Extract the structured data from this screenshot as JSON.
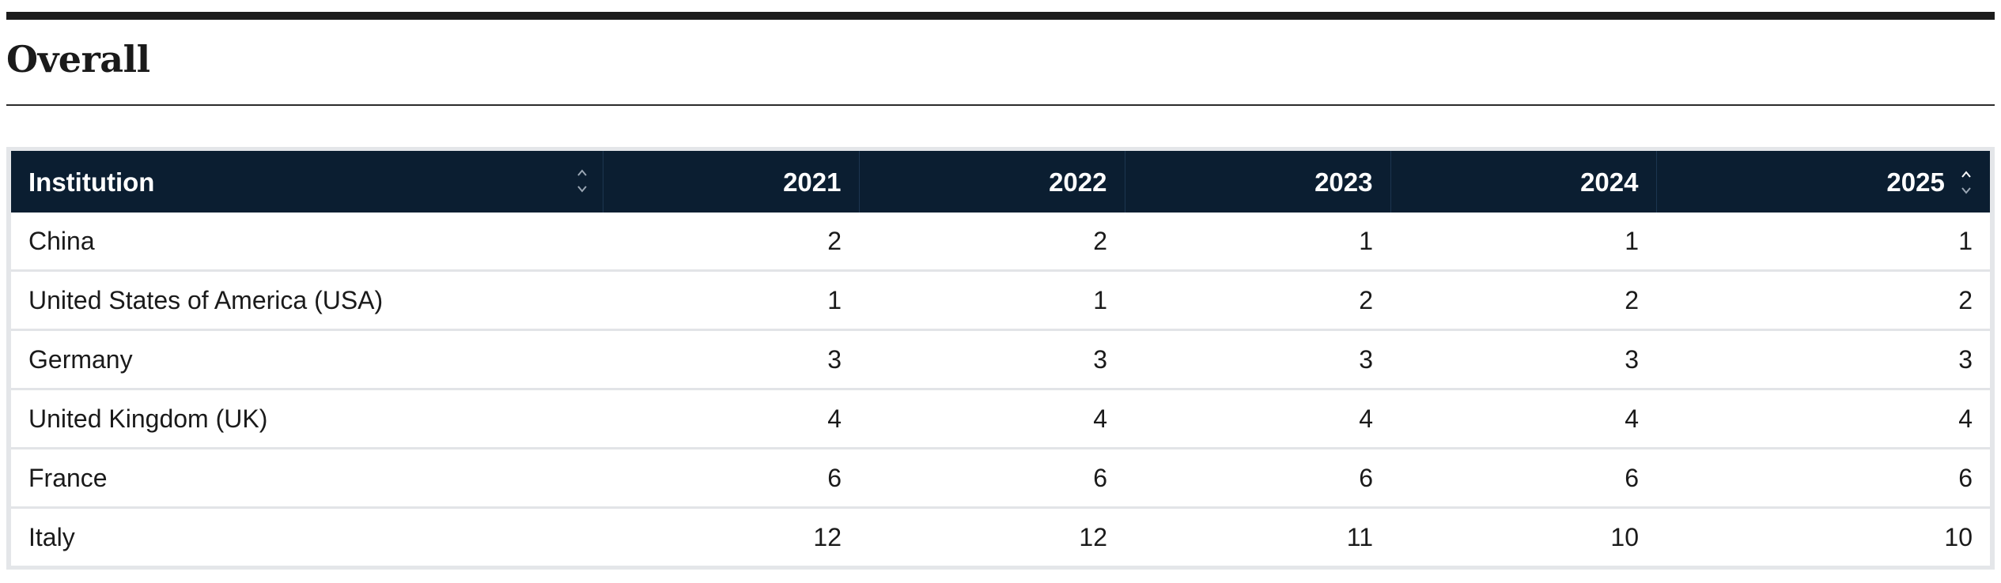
{
  "section": {
    "title": "Overall"
  },
  "table": {
    "headers": [
      "Institution",
      "2021",
      "2022",
      "2023",
      "2024",
      "2025"
    ],
    "sort_icon": "sort-up-down-icon",
    "rows": [
      {
        "name": "China",
        "values": [
          "2",
          "2",
          "1",
          "1",
          "1"
        ]
      },
      {
        "name": "United States of America (USA)",
        "values": [
          "1",
          "1",
          "2",
          "2",
          "2"
        ]
      },
      {
        "name": "Germany",
        "values": [
          "3",
          "3",
          "3",
          "3",
          "3"
        ]
      },
      {
        "name": "United Kingdom (UK)",
        "values": [
          "4",
          "4",
          "4",
          "4",
          "4"
        ]
      },
      {
        "name": "France",
        "values": [
          "6",
          "6",
          "6",
          "6",
          "6"
        ]
      },
      {
        "name": "Italy",
        "values": [
          "12",
          "12",
          "11",
          "10",
          "10"
        ]
      }
    ]
  },
  "colors": {
    "header_bg": "#0b1e31",
    "rule": "#1c1c1c",
    "row_divider": "#e2e4e7"
  }
}
